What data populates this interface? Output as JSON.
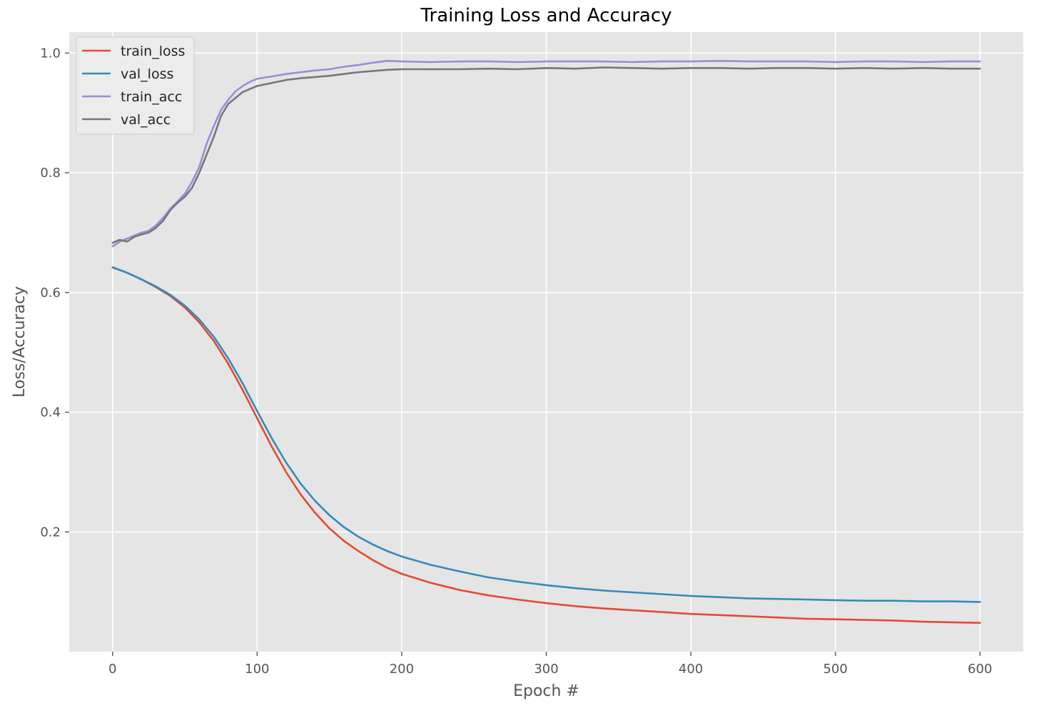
{
  "chart_data": {
    "type": "line",
    "title": "Training Loss and Accuracy",
    "xlabel": "Epoch #",
    "ylabel": "Loss/Accuracy",
    "xlim": [
      -30,
      630
    ],
    "ylim": [
      0.0,
      1.035
    ],
    "xticks": [
      0,
      100,
      200,
      300,
      400,
      500,
      600
    ],
    "yticks": [
      0.2,
      0.4,
      0.6,
      0.8,
      1.0
    ],
    "xtick_labels": [
      "0",
      "100",
      "200",
      "300",
      "400",
      "500",
      "600"
    ],
    "ytick_labels": [
      "0.2",
      "0.4",
      "0.6",
      "0.8",
      "1.0"
    ],
    "grid": true,
    "style": "ggplot",
    "legend_position": "top-left",
    "series": [
      {
        "name": "train_loss",
        "color": "#E24A33",
        "x": [
          0,
          10,
          20,
          30,
          40,
          50,
          60,
          70,
          80,
          90,
          100,
          110,
          120,
          130,
          140,
          150,
          160,
          170,
          180,
          190,
          200,
          220,
          240,
          260,
          280,
          300,
          320,
          340,
          360,
          380,
          400,
          420,
          440,
          460,
          480,
          500,
          520,
          540,
          560,
          580,
          600
        ],
        "values": [
          0.642,
          0.633,
          0.622,
          0.609,
          0.594,
          0.575,
          0.55,
          0.519,
          0.481,
          0.437,
          0.39,
          0.343,
          0.3,
          0.263,
          0.232,
          0.206,
          0.185,
          0.168,
          0.153,
          0.14,
          0.13,
          0.115,
          0.103,
          0.094,
          0.087,
          0.081,
          0.076,
          0.072,
          0.069,
          0.066,
          0.063,
          0.061,
          0.059,
          0.057,
          0.055,
          0.054,
          0.053,
          0.052,
          0.05,
          0.049,
          0.048
        ]
      },
      {
        "name": "val_loss",
        "color": "#348ABD",
        "x": [
          0,
          10,
          20,
          30,
          40,
          50,
          60,
          70,
          80,
          90,
          100,
          110,
          120,
          130,
          140,
          150,
          160,
          170,
          180,
          190,
          200,
          220,
          240,
          260,
          280,
          300,
          320,
          340,
          360,
          380,
          400,
          420,
          440,
          460,
          480,
          500,
          520,
          540,
          560,
          580,
          600
        ],
        "values": [
          0.642,
          0.633,
          0.622,
          0.61,
          0.596,
          0.578,
          0.555,
          0.526,
          0.49,
          0.448,
          0.402,
          0.357,
          0.316,
          0.281,
          0.252,
          0.228,
          0.208,
          0.192,
          0.179,
          0.168,
          0.159,
          0.145,
          0.134,
          0.124,
          0.117,
          0.111,
          0.106,
          0.102,
          0.099,
          0.096,
          0.093,
          0.091,
          0.089,
          0.088,
          0.087,
          0.086,
          0.085,
          0.085,
          0.084,
          0.084,
          0.083
        ]
      },
      {
        "name": "train_acc",
        "color": "#988ED5",
        "x": [
          0,
          5,
          10,
          15,
          20,
          25,
          30,
          35,
          40,
          45,
          50,
          55,
          60,
          65,
          70,
          75,
          80,
          85,
          90,
          95,
          100,
          110,
          120,
          130,
          140,
          150,
          160,
          170,
          180,
          190,
          200,
          220,
          240,
          260,
          280,
          300,
          320,
          340,
          360,
          380,
          400,
          420,
          440,
          460,
          480,
          500,
          520,
          540,
          560,
          580,
          600
        ],
        "values": [
          0.677,
          0.685,
          0.69,
          0.695,
          0.7,
          0.703,
          0.712,
          0.725,
          0.74,
          0.752,
          0.765,
          0.785,
          0.81,
          0.848,
          0.878,
          0.905,
          0.922,
          0.936,
          0.945,
          0.952,
          0.957,
          0.961,
          0.965,
          0.968,
          0.971,
          0.973,
          0.977,
          0.98,
          0.984,
          0.987,
          0.986,
          0.985,
          0.986,
          0.986,
          0.985,
          0.986,
          0.986,
          0.986,
          0.985,
          0.986,
          0.986,
          0.987,
          0.986,
          0.986,
          0.986,
          0.985,
          0.986,
          0.986,
          0.985,
          0.986,
          0.986
        ]
      },
      {
        "name": "val_acc",
        "color": "#777777",
        "x": [
          0,
          5,
          10,
          15,
          20,
          25,
          30,
          35,
          40,
          45,
          50,
          55,
          60,
          65,
          70,
          75,
          80,
          85,
          90,
          95,
          100,
          110,
          120,
          130,
          140,
          150,
          160,
          170,
          180,
          190,
          200,
          220,
          240,
          260,
          280,
          300,
          320,
          340,
          360,
          380,
          400,
          420,
          440,
          460,
          480,
          500,
          520,
          540,
          560,
          580,
          600
        ],
        "values": [
          0.683,
          0.688,
          0.685,
          0.693,
          0.697,
          0.7,
          0.708,
          0.72,
          0.738,
          0.75,
          0.76,
          0.775,
          0.8,
          0.83,
          0.86,
          0.895,
          0.915,
          0.925,
          0.935,
          0.94,
          0.945,
          0.95,
          0.955,
          0.958,
          0.96,
          0.962,
          0.965,
          0.968,
          0.97,
          0.972,
          0.973,
          0.973,
          0.973,
          0.974,
          0.973,
          0.975,
          0.974,
          0.976,
          0.975,
          0.974,
          0.975,
          0.975,
          0.974,
          0.975,
          0.975,
          0.974,
          0.975,
          0.974,
          0.975,
          0.974,
          0.974
        ]
      }
    ]
  }
}
